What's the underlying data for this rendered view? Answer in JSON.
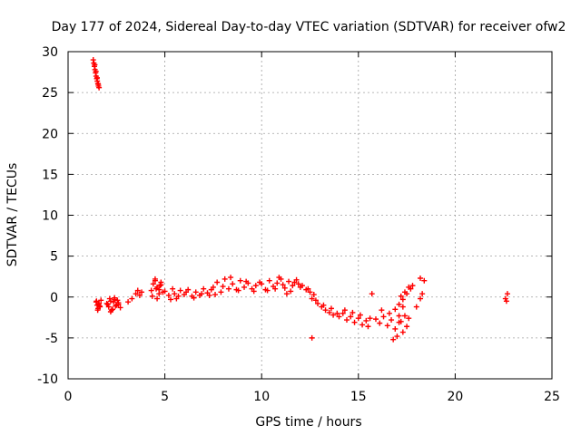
{
  "chart_data": {
    "type": "scatter",
    "title": "Day 177 of 2024, Sidereal Day-to-day VTEC variation (SDTVAR) for receiver ofw2",
    "xlabel": "GPS time / hours",
    "ylabel": "SDTVAR / TECUs",
    "xlim": [
      0,
      25
    ],
    "ylim": [
      -10,
      30
    ],
    "xticks": [
      0,
      5,
      10,
      15,
      20,
      25
    ],
    "yticks": [
      -10,
      -5,
      0,
      5,
      10,
      15,
      20,
      25,
      30
    ],
    "xtick_labels": [
      "0",
      "5",
      "10",
      "15",
      "20",
      "25"
    ],
    "ytick_labels": [
      "-10",
      "-5",
      "0",
      "5",
      "10",
      "15",
      "20",
      "25",
      "30"
    ],
    "grid": true,
    "marker": "+",
    "marker_color": "#ff0000",
    "series": [
      {
        "name": "SDTVAR",
        "x": [
          1.3,
          1.33,
          1.36,
          1.39,
          1.42,
          1.45,
          1.48,
          1.51,
          1.54,
          1.57,
          1.6,
          1.38,
          1.44,
          1.5,
          1.56,
          1.45,
          1.5,
          1.55,
          1.6,
          1.65,
          1.7,
          1.47,
          1.53,
          1.58,
          1.63,
          2.0,
          2.1,
          2.2,
          2.3,
          2.4,
          2.5,
          2.6,
          2.7,
          2.05,
          2.15,
          2.25,
          2.35,
          2.45,
          2.55,
          2.2,
          2.4,
          2.6,
          3.1,
          3.3,
          3.5,
          3.6,
          3.7,
          3.8,
          4.3,
          4.4,
          4.5,
          4.6,
          4.7,
          4.8,
          4.9,
          4.35,
          4.55,
          4.75,
          4.5,
          4.6,
          4.7,
          4.8,
          5.0,
          5.2,
          5.4,
          5.5,
          5.6,
          5.8,
          6.0,
          6.2,
          6.4,
          6.6,
          6.8,
          7.0,
          7.2,
          7.4,
          5.3,
          5.7,
          6.1,
          6.5,
          6.9,
          7.3,
          7.5,
          7.7,
          7.9,
          8.1,
          8.3,
          8.5,
          8.7,
          8.9,
          9.1,
          9.3,
          9.5,
          9.7,
          9.9,
          7.6,
          8.0,
          8.4,
          8.8,
          9.2,
          9.6,
          10.0,
          10.2,
          10.4,
          10.6,
          10.8,
          11.0,
          11.2,
          11.4,
          11.6,
          11.8,
          12.0,
          10.3,
          10.7,
          11.1,
          11.5,
          11.9,
          10.9,
          11.3,
          11.7,
          12.1,
          12.3,
          12.5,
          12.6,
          12.7,
          12.9,
          13.1,
          13.3,
          13.5,
          13.7,
          13.9,
          12.4,
          12.8,
          13.2,
          13.6,
          12.6,
          14.0,
          14.2,
          14.4,
          14.6,
          14.8,
          15.0,
          15.2,
          15.4,
          15.6,
          14.3,
          14.7,
          15.1,
          15.5,
          15.7,
          15.9,
          16.1,
          16.3,
          16.5,
          16.7,
          16.9,
          17.1,
          17.3,
          17.5,
          16.2,
          16.6,
          17.0,
          17.4,
          16.8,
          17.2,
          17.6,
          16.9,
          17.1,
          17.3,
          17.5,
          17.7,
          17.2,
          17.4,
          17.6,
          17.1,
          17.3,
          17.8,
          18.0,
          18.2,
          18.3,
          18.4,
          18.2,
          22.6,
          22.7,
          22.65
        ],
        "y": [
          29.0,
          28.6,
          28.2,
          27.8,
          27.4,
          27.0,
          26.7,
          26.4,
          26.1,
          25.8,
          25.6,
          28.4,
          27.6,
          26.8,
          26.0,
          -0.6,
          -1.0,
          -1.4,
          -0.8,
          -1.2,
          -0.4,
          -0.5,
          -1.6,
          -0.9,
          -1.1,
          -0.8,
          -1.2,
          -0.5,
          -1.5,
          -0.3,
          -1.0,
          -0.7,
          -1.3,
          -0.9,
          -0.2,
          -1.6,
          -0.6,
          -1.1,
          -0.4,
          -1.8,
          -0.1,
          -0.9,
          -0.6,
          -0.2,
          0.4,
          0.8,
          0.2,
          0.6,
          0.8,
          1.6,
          2.0,
          1.2,
          0.4,
          1.8,
          0.6,
          0.1,
          1.0,
          1.4,
          2.2,
          -0.2,
          0.9,
          1.5,
          0.7,
          0.2,
          1.0,
          0.4,
          -0.2,
          0.8,
          0.3,
          0.9,
          0.1,
          0.6,
          0.2,
          1.0,
          0.5,
          0.9,
          -0.3,
          0.1,
          0.6,
          -0.1,
          0.4,
          0.2,
          1.2,
          1.8,
          0.6,
          2.2,
          1.0,
          1.6,
          0.9,
          2.0,
          1.2,
          1.7,
          1.0,
          1.4,
          1.8,
          0.3,
          1.3,
          2.4,
          0.8,
          1.9,
          0.7,
          1.6,
          0.9,
          2.0,
          1.3,
          1.7,
          2.2,
          1.1,
          1.9,
          1.4,
          2.1,
          1.2,
          0.8,
          1.0,
          1.5,
          0.7,
          1.6,
          2.4,
          0.4,
          1.8,
          1.4,
          0.9,
          0.6,
          -0.2,
          0.3,
          -0.8,
          -1.2,
          -1.6,
          -1.9,
          -2.2,
          -2.0,
          1.0,
          -0.4,
          -1.0,
          -1.4,
          -5.0,
          -2.4,
          -2.0,
          -2.8,
          -2.4,
          -3.1,
          -2.6,
          -3.4,
          -2.9,
          -2.6,
          -1.6,
          -1.9,
          -2.2,
          -3.6,
          0.4,
          -2.7,
          -3.2,
          -2.4,
          -3.5,
          -2.8,
          -3.9,
          -3.1,
          -4.3,
          -3.6,
          -1.6,
          -2.0,
          -4.8,
          -2.3,
          -5.2,
          -3.0,
          -2.6,
          -1.5,
          -0.9,
          -0.3,
          0.4,
          1.0,
          0.1,
          0.6,
          1.2,
          -2.3,
          -1.2,
          1.4,
          -1.2,
          -0.2,
          0.4,
          2.0,
          2.3,
          -0.2,
          0.4,
          -0.5
        ]
      }
    ]
  }
}
